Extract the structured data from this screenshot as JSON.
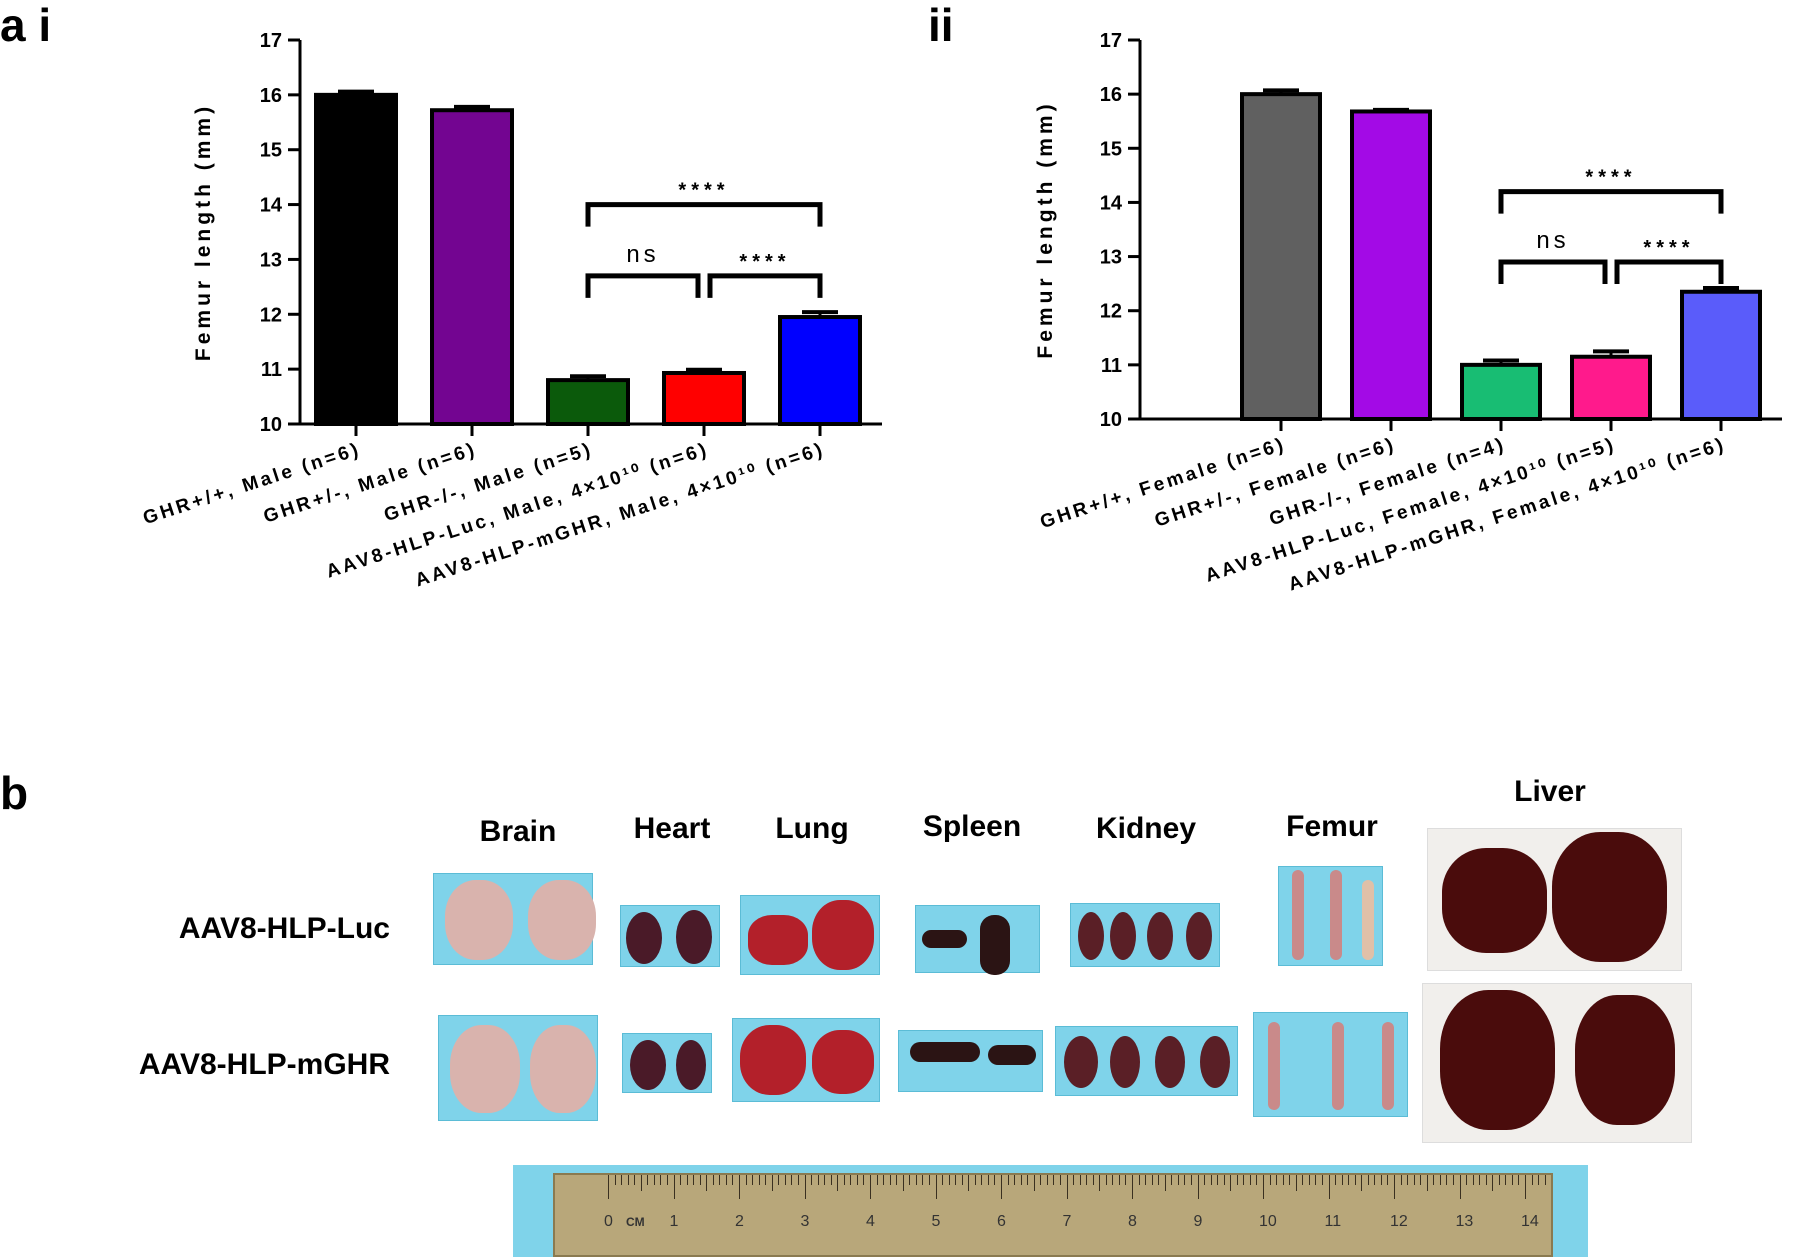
{
  "panel_labels": {
    "a_i": "a i",
    "a_ii": "ii",
    "b": "b"
  },
  "chart_data": [
    {
      "type": "bar",
      "panel": "a i",
      "ylabel": "Femur length (mm)",
      "ylim": [
        10,
        17
      ],
      "yticks": [
        10,
        11,
        12,
        13,
        14,
        15,
        16,
        17
      ],
      "categories": [
        "GHR+/+, Male (n=6)",
        "GHR+/-, Male (n=6)",
        "GHR-/-, Male (n=5)",
        "AAV8-HLP-Luc, Male, 4×10¹⁰ (n=6)",
        "AAV8-HLP-mGHR, Male, 4×10¹⁰ (n=6)"
      ],
      "values": [
        16.0,
        15.72,
        10.8,
        10.93,
        11.95
      ],
      "errors": [
        0.06,
        0.06,
        0.07,
        0.06,
        0.09
      ],
      "colors": [
        "#000000",
        "#730591",
        "#0b5a0b",
        "#ff0000",
        "#0000ff"
      ],
      "annotations": [
        {
          "from": 2,
          "to": 4,
          "level": 14.0,
          "text": "****"
        },
        {
          "from": 2,
          "to": 3,
          "level": 12.7,
          "text": "ns"
        },
        {
          "from": 3,
          "to": 4,
          "level": 12.7,
          "text": "****"
        }
      ]
    },
    {
      "type": "bar",
      "panel": "ii",
      "ylabel": "Femur length (mm)",
      "ylim": [
        10,
        17
      ],
      "yticks": [
        10,
        11,
        12,
        13,
        14,
        15,
        16,
        17
      ],
      "categories": [
        "GHR+/+, Female (n=6)",
        "GHR+/-, Female (n=6)",
        "GHR-/-, Female (n=4)",
        "AAV8-HLP-Luc, Female, 4×10¹⁰ (n=5)",
        "AAV8-HLP-mGHR, Female, 4×10¹⁰ (n=6)"
      ],
      "values": [
        16.0,
        15.68,
        11.0,
        11.15,
        12.35
      ],
      "errors": [
        0.07,
        0.03,
        0.08,
        0.1,
        0.07
      ],
      "colors": [
        "#606060",
        "#a30ae6",
        "#18bd73",
        "#ff1a8c",
        "#5a5cfa"
      ],
      "annotations": [
        {
          "from": 2,
          "to": 4,
          "level": 14.2,
          "text": "****"
        },
        {
          "from": 2,
          "to": 3,
          "level": 12.9,
          "text": "ns"
        },
        {
          "from": 3,
          "to": 4,
          "level": 12.9,
          "text": "****"
        }
      ]
    }
  ],
  "panel_b": {
    "columns": [
      "Brain",
      "Heart",
      "Lung",
      "Spleen",
      "Kidney",
      "Femur",
      "Liver"
    ],
    "rows": [
      "AAV8-HLP-Luc",
      "AAV8-HLP-mGHR"
    ],
    "ruler": {
      "unit": "CM",
      "numbers": [
        "0",
        "1",
        "2",
        "3",
        "4",
        "5",
        "6",
        "7",
        "8",
        "9",
        "10",
        "11",
        "12",
        "13",
        "14"
      ]
    }
  }
}
